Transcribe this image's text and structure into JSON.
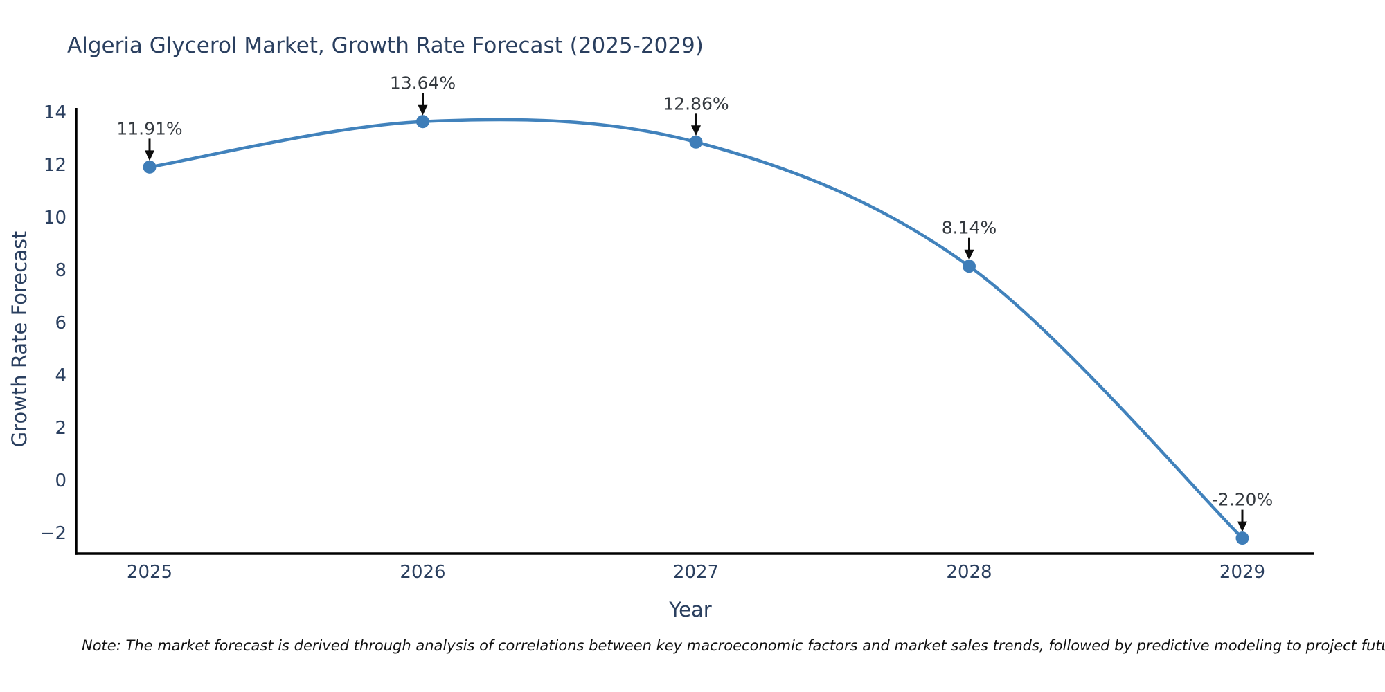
{
  "title": "Algeria Glycerol Market, Growth Rate Forecast (2025-2029)",
  "note": "Note: The market forecast is derived through analysis of correlations between key macroeconomic factors and market sales trends, followed by predictive modeling to project future sales",
  "chart_data": {
    "type": "line",
    "title": "Algeria Glycerol Market, Growth Rate Forecast (2025-2029)",
    "x": [
      2025,
      2026,
      2027,
      2028,
      2029
    ],
    "xticklabels": [
      "2025",
      "2026",
      "2027",
      "2028",
      "2029"
    ],
    "series": [
      {
        "name": "Growth Rate Forecast",
        "values": [
          11.91,
          13.64,
          12.86,
          8.14,
          -2.2
        ],
        "point_labels": [
          "11.91%",
          "13.64%",
          "12.86%",
          "8.14%",
          "-2.20%"
        ]
      }
    ],
    "xlabel": "Year",
    "ylabel": "Growth Rate Forecast",
    "yticks": [
      14,
      12,
      10,
      8,
      6,
      4,
      2,
      0,
      -2
    ],
    "ylim": [
      -2.8,
      14.15
    ],
    "grid": false,
    "legend": "none",
    "curve": "spline",
    "annotation_arrows": true,
    "line_color": "#4182bc",
    "marker_color": "#3e7db8",
    "arrow_color": "#0d0d0d",
    "axis_color": "#000000",
    "text_color": "#2a3f5f",
    "annotation_text_color": "#34393f",
    "background": "#ffffff"
  }
}
